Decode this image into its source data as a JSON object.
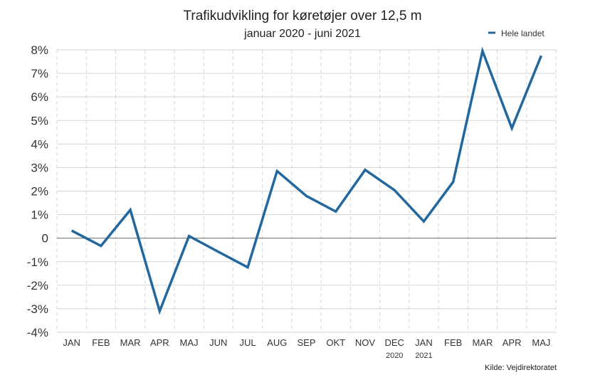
{
  "chart_data": {
    "type": "line",
    "title": "Trafikudvikling for køretøjer over 12,5 m",
    "subtitle": "januar 2020 - juni 2021",
    "categories": [
      "JAN",
      "FEB",
      "MAR",
      "APR",
      "MAJ",
      "JUN",
      "JUL",
      "AUG",
      "SEP",
      "OKT",
      "NOV",
      "DEC",
      "JAN",
      "FEB",
      "MAR",
      "APR",
      "MAJ"
    ],
    "category_sublabels": {
      "11": "2020",
      "12": "2021"
    },
    "series": [
      {
        "name": "Hele landet",
        "color": "#22679e",
        "values": [
          0.32,
          -0.33,
          1.2,
          -3.1,
          0.09,
          -0.58,
          -1.24,
          2.85,
          1.79,
          1.13,
          2.9,
          2.04,
          0.71,
          2.39,
          7.95,
          4.67,
          7.75
        ]
      }
    ],
    "yticks": [
      8,
      7,
      6,
      5,
      4,
      3,
      2,
      1,
      0,
      -1,
      -2,
      -3,
      -4
    ],
    "ytick_labels": [
      "8%",
      "7%",
      "6%",
      "5%",
      "4%",
      "3%",
      "2%",
      "1%",
      "0",
      "-1%",
      "-2%",
      "-3%",
      "-4%"
    ],
    "ylim": [
      -4,
      8
    ],
    "grid": true,
    "legend_position": "top-right",
    "source": "Kilde: Vejdirektoratet"
  }
}
